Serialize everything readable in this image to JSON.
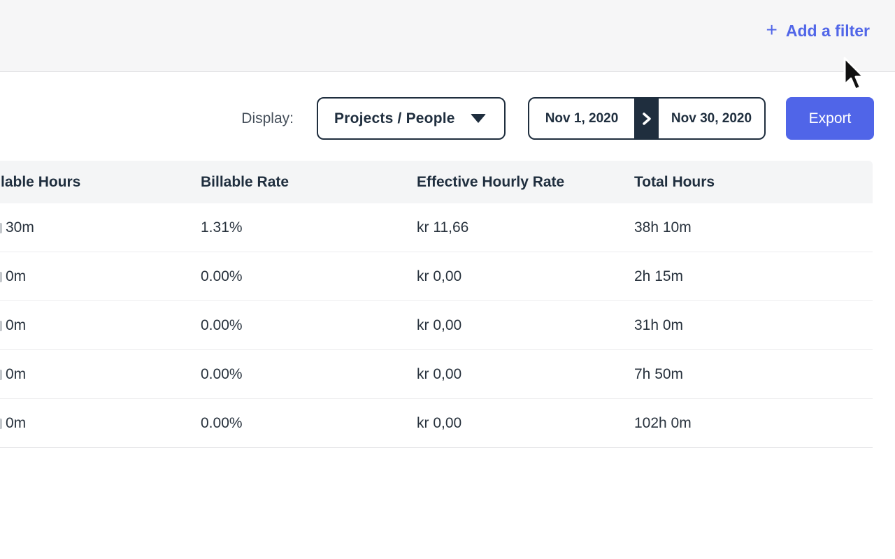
{
  "colors": {
    "accent_blue": "#5166e8",
    "export_blue": "#5065e8",
    "dark_navy": "#1f2e3e",
    "topbar_bg": "#f6f6f7",
    "table_header_bg": "#f4f5f6",
    "row_border": "#ededef",
    "body_text": "#28323d"
  },
  "filter_bar": {
    "plus_icon": "+",
    "add_filter_label": "Add a filter"
  },
  "toolbar": {
    "display_label": "Display:",
    "display_value": "Projects / People",
    "date_start": "Nov 1, 2020",
    "date_end": "Nov 30, 2020",
    "export_label": "Export"
  },
  "table": {
    "columns": [
      "lable Hours",
      "Billable Rate",
      "Effective Hourly Rate",
      "Total Hours"
    ],
    "rows": [
      [
        "30m",
        "1.31%",
        "kr 11,66",
        "38h 10m"
      ],
      [
        "0m",
        "0.00%",
        "kr 0,00",
        "2h 15m"
      ],
      [
        "0m",
        "0.00%",
        "kr 0,00",
        "31h 0m"
      ],
      [
        "0m",
        "0.00%",
        "kr 0,00",
        "7h 50m"
      ],
      [
        "0m",
        "0.00%",
        "kr 0,00",
        "102h 0m"
      ]
    ]
  }
}
